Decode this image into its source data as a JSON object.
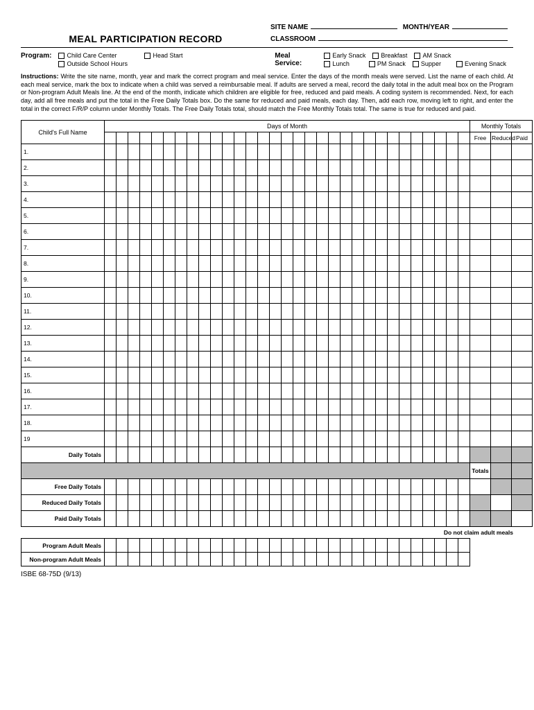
{
  "title": "MEAL PARTICIPATION RECORD",
  "header": {
    "site_name_label": "SITE NAME",
    "month_year_label": "MONTH/YEAR",
    "classroom_label": "CLASSROOM"
  },
  "program": {
    "label": "Program:",
    "options": [
      "Child Care Center",
      "Head Start",
      "Outside School Hours"
    ]
  },
  "meal_service": {
    "label": "Meal Service:",
    "options_row1": [
      "Early Snack",
      "Breakfast",
      "AM Snack"
    ],
    "options_row2": [
      "Lunch",
      "PM Snack",
      "Supper",
      "Evening Snack"
    ]
  },
  "instructions_label": "Instructions:",
  "instructions_text": "Write the site name, month, year and mark the correct program and meal service.  Enter the days of the month meals were served.  List the name of each child.  At each meal service, mark the box to indicate when a child was served a reimbursable meal.  If adults are served a meal, record the daily total in the adult meal box on the Program or Non-program Adult Meals line.  At the end of the month, indicate which children are eligible for free, reduced and paid meals.  A coding system is recommended.  Next, for each day, add all free meals and put the total in the Free Daily Totals box.  Do the same for reduced and paid meals, each day.  Then, add each row, moving left to right, and enter the total in the correct F/R/P column under Monthly Totals.  The Free Daily Totals total, should match the Free Monthly Totals total.  The same is true for reduced and paid.",
  "table": {
    "child_name_header": "Child's Full Name",
    "days_header": "Days of Month",
    "monthly_totals_header": "Monthly Totals",
    "mt_cols": [
      "Free",
      "Reduced",
      "Paid"
    ],
    "num_day_cols": 31,
    "rows": [
      "1.",
      "2.",
      "3.",
      "4.",
      "5.",
      "6.",
      "7.",
      "8.",
      "9.",
      "10.",
      "11.",
      "12.",
      "13.",
      "14.",
      "15.",
      "16.",
      "17.",
      "18.",
      "19"
    ],
    "daily_totals": "Daily Totals",
    "totals": "Totals",
    "free_daily": "Free Daily Totals",
    "reduced_daily": "Reduced Daily Totals",
    "paid_daily": "Paid Daily Totals"
  },
  "footnote": "Do not claim adult meals",
  "adult": {
    "program": "Program Adult Meals",
    "nonprogram": "Non-program Adult Meals"
  },
  "form_id": "ISBE 68-75D (9/13)"
}
